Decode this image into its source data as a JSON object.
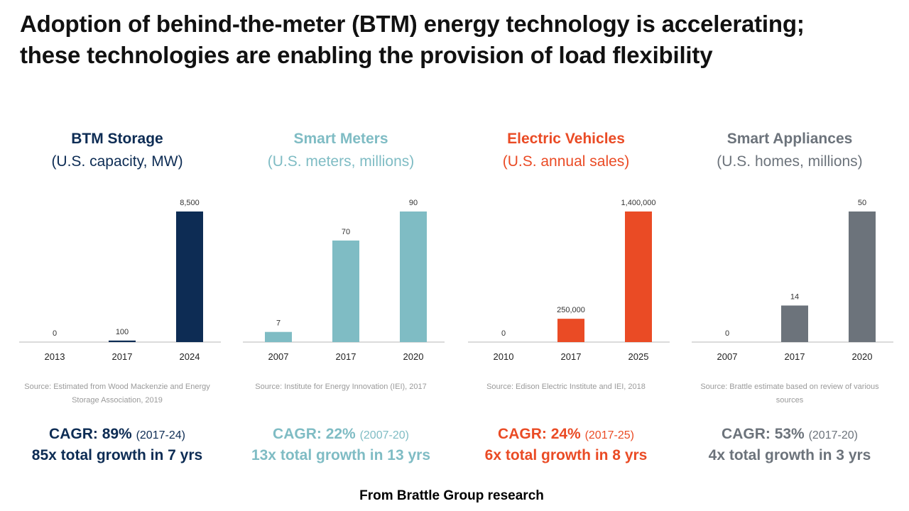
{
  "title": {
    "line1": "Adoption of behind-the-meter (BTM) energy technology is accelerating;",
    "line2": "these technologies are enabling the provision of load flexibility"
  },
  "panels": [
    {
      "heading": "BTM Storage",
      "subheading": "(U.S. capacity, MW)",
      "color": "#0d2c54",
      "source": "Source: Estimated from Wood Mackenzie and Energy Storage Association, 2019",
      "cagr": "CAGR: 89%",
      "cagr_period": "(2017-24)",
      "growth": "85x total growth in 7 yrs"
    },
    {
      "heading": "Smart Meters",
      "subheading": "(U.S. meters, millions)",
      "color": "#7fbcc4",
      "source": "Source: Institute for Energy Innovation (IEI), 2017",
      "cagr": "CAGR: 22%",
      "cagr_period": "(2007-20)",
      "growth": "13x total growth in 13 yrs"
    },
    {
      "heading": "Electric Vehicles",
      "subheading": "(U.S. annual sales)",
      "color": "#ea4b25",
      "source": "Source: Edison Electric Institute and IEI, 2018",
      "cagr": "CAGR: 24%",
      "cagr_period": "(2017-25)",
      "growth": "6x total growth in 8 yrs"
    },
    {
      "heading": "Smart Appliances",
      "subheading": "(U.S. homes, millions)",
      "color": "#6c737b",
      "source": "Source: Brattle estimate based on review of various sources",
      "cagr": "CAGR: 53%",
      "cagr_period": "(2017-20)",
      "growth": "4x total growth in 3 yrs"
    }
  ],
  "chart_data": [
    {
      "type": "bar",
      "title": "BTM Storage",
      "ylabel": "(U.S. capacity, MW)",
      "categories": [
        "2013",
        "2017",
        "2024"
      ],
      "values": [
        0,
        100,
        8500
      ],
      "labels": [
        "0",
        "100",
        "8,500"
      ],
      "ylim": [
        0,
        8500
      ],
      "grid": false,
      "color": "#0d2c54"
    },
    {
      "type": "bar",
      "title": "Smart Meters",
      "ylabel": "(U.S. meters, millions)",
      "categories": [
        "2007",
        "2017",
        "2020"
      ],
      "values": [
        7,
        70,
        90
      ],
      "labels": [
        "7",
        "70",
        "90"
      ],
      "ylim": [
        0,
        90
      ],
      "grid": false,
      "color": "#7fbcc4"
    },
    {
      "type": "bar",
      "title": "Electric Vehicles",
      "ylabel": "(U.S. annual sales)",
      "categories": [
        "2010",
        "2017",
        "2025"
      ],
      "values": [
        0,
        250000,
        1400000
      ],
      "labels": [
        "0",
        "250,000",
        "1,400,000"
      ],
      "ylim": [
        0,
        1400000
      ],
      "grid": false,
      "color": "#ea4b25"
    },
    {
      "type": "bar",
      "title": "Smart Appliances",
      "ylabel": "(U.S. homes, millions)",
      "categories": [
        "2007",
        "2017",
        "2020"
      ],
      "values": [
        0,
        14,
        50
      ],
      "labels": [
        "0",
        "14",
        "50"
      ],
      "ylim": [
        0,
        50
      ],
      "grid": false,
      "color": "#6c737b"
    }
  ],
  "footer": "From Brattle Group research"
}
